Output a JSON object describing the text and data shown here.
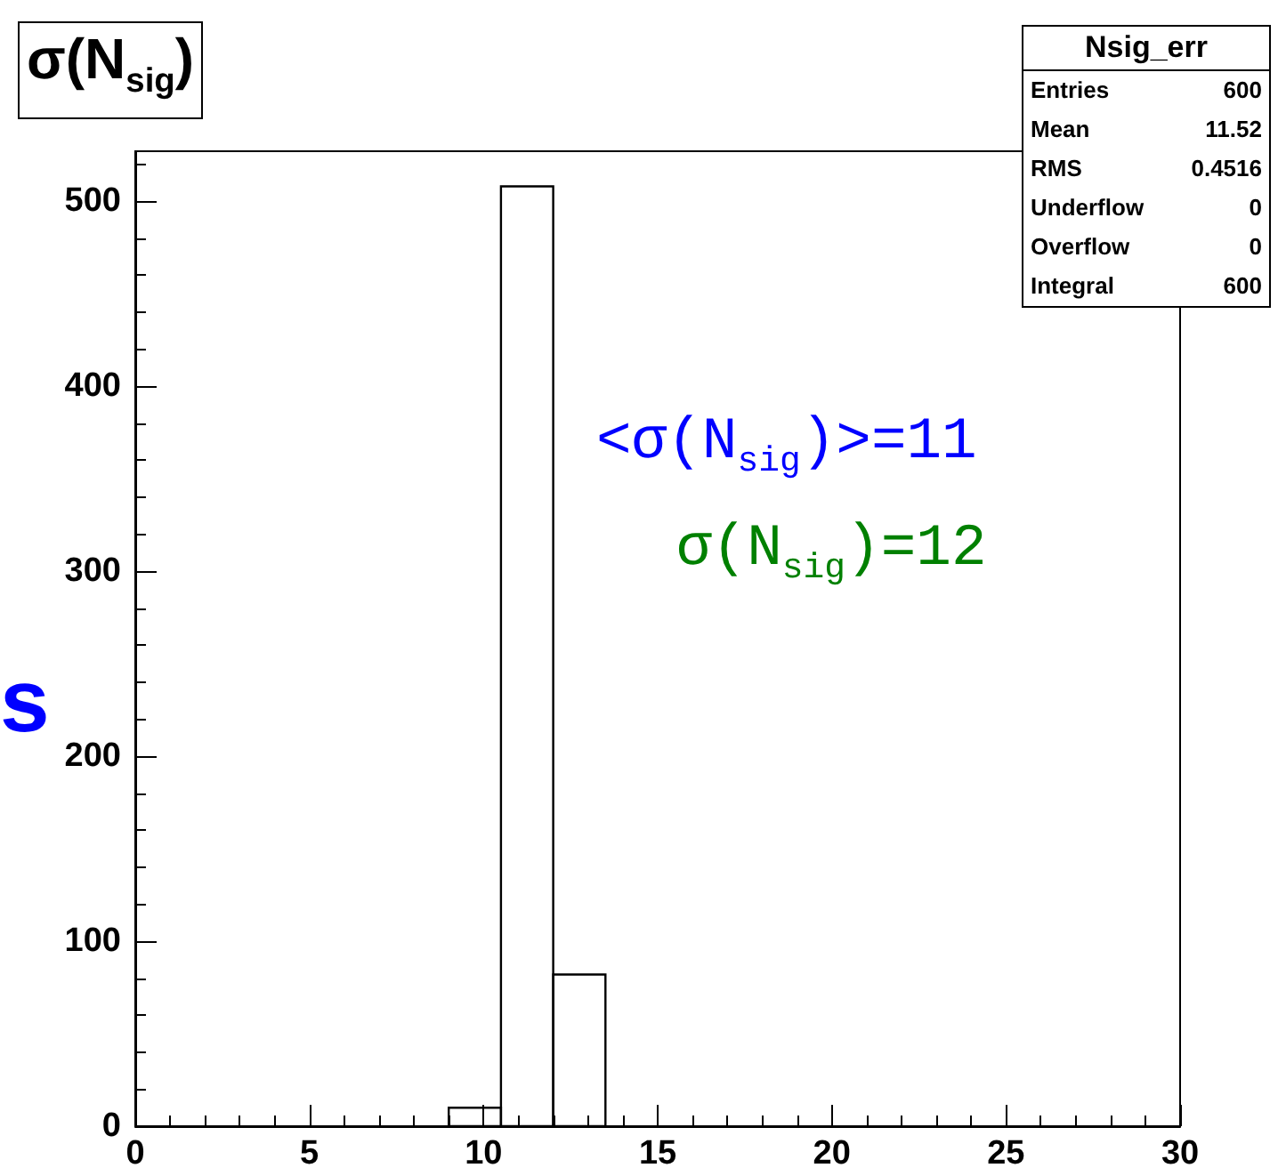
{
  "chart_data": {
    "type": "histogram",
    "title": "σ(N$_{sig}$)",
    "ylabel": "s",
    "bins": [
      9,
      10.5,
      12,
      13.5
    ],
    "values": [
      10,
      508,
      82
    ],
    "color": "#000000",
    "xlim": [
      0,
      30
    ],
    "xticks": [
      0,
      5,
      10,
      15,
      20,
      25,
      30
    ],
    "ylim": [
      0,
      527
    ],
    "yticks": [
      0,
      100,
      200,
      300,
      400,
      500
    ],
    "grid": false,
    "annotations": [
      "<σ(N$_{sig}$)>=11",
      "σ(N$_{sig}$)=12",
      "Nsig_err",
      "Entries",
      "600",
      "Mean",
      "11.52",
      "RMS",
      "0.4516",
      "Underflow",
      "0",
      "Overflow",
      "0",
      "Integral",
      "600"
    ]
  }
}
